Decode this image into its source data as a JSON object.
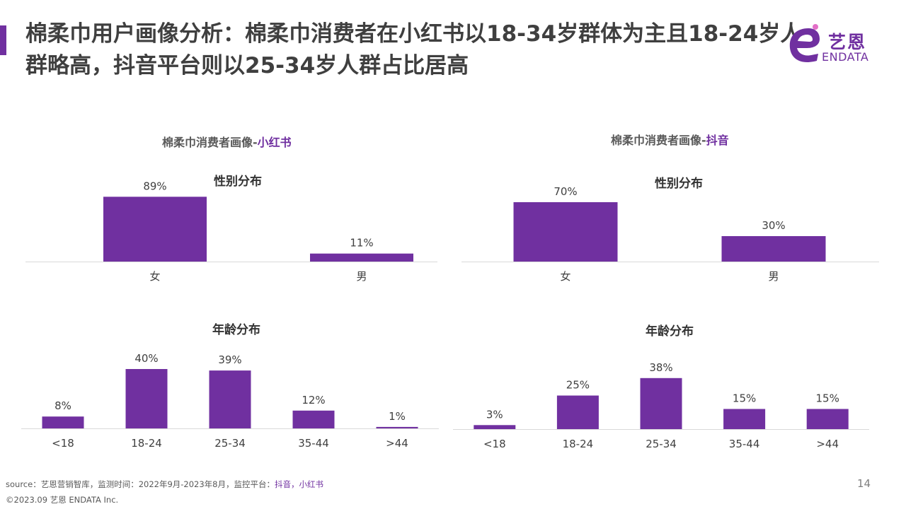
{
  "title": "棉柔巾用户画像分析：棉柔巾消费者在小红书以18-34岁群体为主且18-24岁人群略高，抖音平台则以25-34岁人群占比居高",
  "logo": {
    "text": "艺恩",
    "sub": "ENDATA"
  },
  "panels": [
    {
      "title_prefix": "棉柔巾消费者画像-",
      "title_platform": "小红书",
      "gender_title": "性别分布",
      "age_title": "年龄分布"
    },
    {
      "title_prefix": "棉柔巾消费者画像-",
      "title_platform": "抖音",
      "gender_title": "性别分布",
      "age_title": "年龄分布"
    }
  ],
  "footer": {
    "source_prefix": "source：艺恩营销智库，监测时间：2022年9月-2023年8月，监控平台：",
    "source_platforms": "抖音，小红书",
    "copyright": "©2023.09  艺恩 ENDATA Inc.",
    "page": "14"
  },
  "colors": {
    "bar": "#7030a0",
    "axis": "#d9d9d9",
    "text": "#404040"
  },
  "chart_data": [
    {
      "id": "xhs-gender",
      "type": "bar",
      "title": "性别分布",
      "categories": [
        "女",
        "男"
      ],
      "values": [
        89,
        11
      ],
      "labels": [
        "89%",
        "11%"
      ],
      "unit": "%"
    },
    {
      "id": "xhs-age",
      "type": "bar",
      "title": "年龄分布",
      "categories": [
        "<18",
        "18-24",
        "25-34",
        "35-44",
        ">44"
      ],
      "values": [
        8,
        40,
        39,
        12,
        1
      ],
      "labels": [
        "8%",
        "40%",
        "39%",
        "12%",
        "1%"
      ],
      "unit": "%"
    },
    {
      "id": "dy-gender",
      "type": "bar",
      "title": "性别分布",
      "categories": [
        "女",
        "男"
      ],
      "values": [
        70,
        30
      ],
      "labels": [
        "70%",
        "30%"
      ],
      "unit": "%"
    },
    {
      "id": "dy-age",
      "type": "bar",
      "title": "年龄分布",
      "categories": [
        "<18",
        "18-24",
        "25-34",
        "35-44",
        ">44"
      ],
      "values": [
        3,
        25,
        38,
        15,
        15
      ],
      "labels": [
        "3%",
        "25%",
        "38%",
        "15%",
        "15%"
      ],
      "unit": "%"
    }
  ]
}
